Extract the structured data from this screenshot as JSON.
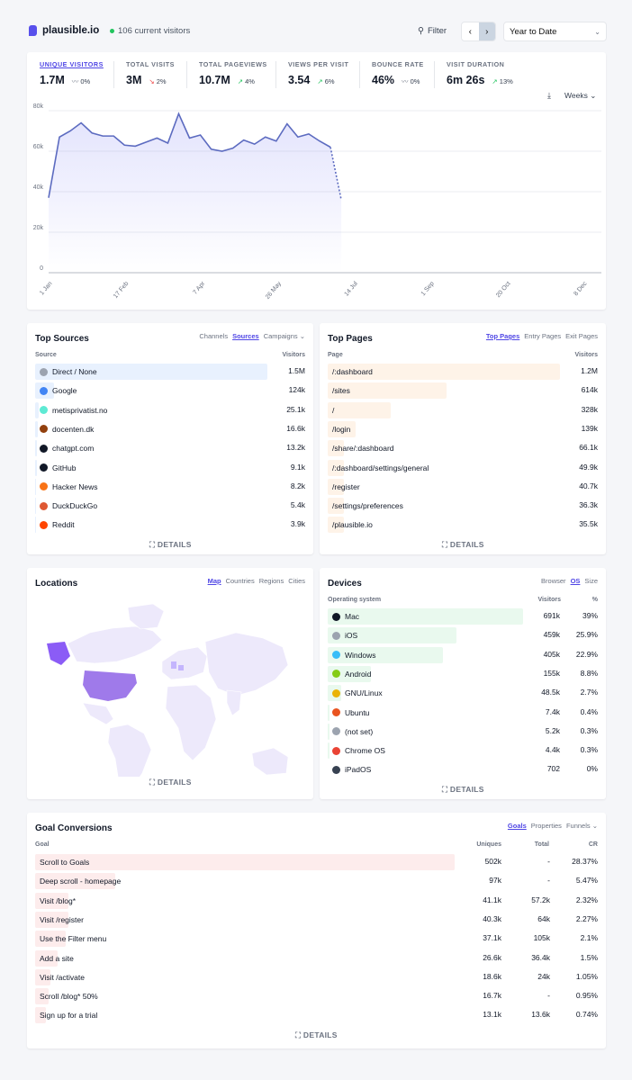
{
  "header": {
    "site": "plausible.io",
    "current_visitors": "106 current visitors",
    "filter_label": "Filter",
    "period": "Year to Date"
  },
  "stats": [
    {
      "label": "UNIQUE VISITORS",
      "value": "1.7M",
      "change": "0%",
      "trend": "flat",
      "selected": true
    },
    {
      "label": "TOTAL VISITS",
      "value": "3M",
      "change": "2%",
      "trend": "down"
    },
    {
      "label": "TOTAL PAGEVIEWS",
      "value": "10.7M",
      "change": "4%",
      "trend": "up"
    },
    {
      "label": "VIEWS PER VISIT",
      "value": "3.54",
      "change": "6%",
      "trend": "up"
    },
    {
      "label": "BOUNCE RATE",
      "value": "46%",
      "change": "0%",
      "trend": "flat"
    },
    {
      "label": "VISIT DURATION",
      "value": "6m 26s",
      "change": "13%",
      "trend": "up"
    }
  ],
  "interval": "Weeks",
  "chart_data": {
    "type": "line",
    "y_ticks": [
      "0",
      "20k",
      "40k",
      "60k",
      "80k"
    ],
    "ylim": [
      0,
      80000
    ],
    "x_ticks": [
      "1 Jan",
      "17 Feb",
      "7 Apr",
      "26 May",
      "14 Jul",
      "1 Sep",
      "20 Oct",
      "8 Dec"
    ],
    "series": [
      {
        "values": [
          37000,
          67000,
          70000,
          74000,
          69000,
          67500,
          67500,
          63000,
          62500,
          64500,
          66500,
          64000,
          78500,
          66500,
          68000,
          61000,
          60000,
          61500,
          65500,
          63500,
          67000,
          65000,
          73500,
          67000,
          68500,
          65000,
          62000
        ],
        "partial_last": 36000
      }
    ]
  },
  "sources": {
    "title": "Top Sources",
    "tabs": [
      "Channels",
      "Sources",
      "Campaigns"
    ],
    "col1": "Source",
    "col2": "Visitors",
    "rows": [
      {
        "name": "Direct / None",
        "value": "1.5M",
        "frac": 1.0,
        "icon": "link-icon",
        "color": "#9ca3af"
      },
      {
        "name": "Google",
        "value": "124k",
        "frac": 0.083,
        "icon": "google-icon",
        "color": "#4285f4"
      },
      {
        "name": "metisprivatist.no",
        "value": "25.1k",
        "frac": 0.017,
        "icon": "globe-icon",
        "color": "#5eead4"
      },
      {
        "name": "docenten.dk",
        "value": "16.6k",
        "frac": 0.011,
        "icon": "building-icon",
        "color": "#92400e"
      },
      {
        "name": "chatgpt.com",
        "value": "13.2k",
        "frac": 0.009,
        "icon": "chatgpt-icon",
        "color": "#111827"
      },
      {
        "name": "GitHub",
        "value": "9.1k",
        "frac": 0.006,
        "icon": "github-icon",
        "color": "#111827"
      },
      {
        "name": "Hacker News",
        "value": "8.2k",
        "frac": 0.005,
        "icon": "hackernews-icon",
        "color": "#f97316"
      },
      {
        "name": "DuckDuckGo",
        "value": "5.4k",
        "frac": 0.004,
        "icon": "duckduckgo-icon",
        "color": "#de5833"
      },
      {
        "name": "Reddit",
        "value": "3.9k",
        "frac": 0.003,
        "icon": "reddit-icon",
        "color": "#ff4500"
      }
    ],
    "details": "DETAILS"
  },
  "pages": {
    "title": "Top Pages",
    "tabs": [
      "Top Pages",
      "Entry Pages",
      "Exit Pages"
    ],
    "col1": "Page",
    "col2": "Visitors",
    "rows": [
      {
        "name": "/:dashboard",
        "value": "1.2M",
        "frac": 1.0
      },
      {
        "name": "/sites",
        "value": "614k",
        "frac": 0.51
      },
      {
        "name": "/",
        "value": "328k",
        "frac": 0.27
      },
      {
        "name": "/login",
        "value": "139k",
        "frac": 0.12
      },
      {
        "name": "/share/:dashboard",
        "value": "66.1k",
        "frac": 0.055
      },
      {
        "name": "/:dashboard/settings/general",
        "value": "49.9k",
        "frac": 0.042
      },
      {
        "name": "/register",
        "value": "40.7k",
        "frac": 0.034
      },
      {
        "name": "/settings/preferences",
        "value": "36.3k",
        "frac": 0.03
      },
      {
        "name": "/plausible.io",
        "value": "35.5k",
        "frac": 0.03
      }
    ],
    "details": "DETAILS"
  },
  "locations": {
    "title": "Locations",
    "tabs": [
      "Map",
      "Countries",
      "Regions",
      "Cities"
    ],
    "details": "DETAILS"
  },
  "devices": {
    "title": "Devices",
    "tabs": [
      "Browser",
      "OS",
      "Size"
    ],
    "col1": "Operating system",
    "col2": "Visitors",
    "col3": "%",
    "rows": [
      {
        "name": "Mac",
        "value": "691k",
        "pct": "39%",
        "frac": 1.0,
        "icon": "apple-icon",
        "color": "#111827"
      },
      {
        "name": "iOS",
        "value": "459k",
        "pct": "25.9%",
        "frac": 0.66,
        "icon": "ios-icon",
        "color": "#9ca3af"
      },
      {
        "name": "Windows",
        "value": "405k",
        "pct": "22.9%",
        "frac": 0.59,
        "icon": "windows-icon",
        "color": "#38bdf8"
      },
      {
        "name": "Android",
        "value": "155k",
        "pct": "8.8%",
        "frac": 0.22,
        "icon": "android-icon",
        "color": "#84cc16"
      },
      {
        "name": "GNU/Linux",
        "value": "48.5k",
        "pct": "2.7%",
        "frac": 0.07,
        "icon": "linux-icon",
        "color": "#eab308"
      },
      {
        "name": "Ubuntu",
        "value": "7.4k",
        "pct": "0.4%",
        "frac": 0.01,
        "icon": "ubuntu-icon",
        "color": "#e95420"
      },
      {
        "name": "(not set)",
        "value": "5.2k",
        "pct": "0.3%",
        "frac": 0.01,
        "icon": "unknown-icon",
        "color": "#9ca3af"
      },
      {
        "name": "Chrome OS",
        "value": "4.4k",
        "pct": "0.3%",
        "frac": 0.01,
        "icon": "chromeos-icon",
        "color": "#ea4335"
      },
      {
        "name": "iPadOS",
        "value": "702",
        "pct": "0%",
        "frac": 0.0,
        "icon": "ipados-icon",
        "color": "#374151"
      }
    ],
    "details": "DETAILS"
  },
  "goals": {
    "title": "Goal Conversions",
    "tabs": [
      "Goals",
      "Properties",
      "Funnels"
    ],
    "col1": "Goal",
    "col2": "Uniques",
    "col3": "Total",
    "col4": "CR",
    "rows": [
      {
        "name": "Scroll to Goals",
        "uniques": "502k",
        "total": "-",
        "cr": "28.37%",
        "frac": 1.0
      },
      {
        "name": "Deep scroll - homepage",
        "uniques": "97k",
        "total": "-",
        "cr": "5.47%",
        "frac": 0.19
      },
      {
        "name": "Visit /blog*",
        "uniques": "41.1k",
        "total": "57.2k",
        "cr": "2.32%",
        "frac": 0.08
      },
      {
        "name": "Visit /register",
        "uniques": "40.3k",
        "total": "64k",
        "cr": "2.27%",
        "frac": 0.08
      },
      {
        "name": "Use the Filter menu",
        "uniques": "37.1k",
        "total": "105k",
        "cr": "2.1%",
        "frac": 0.074
      },
      {
        "name": "Add a site",
        "uniques": "26.6k",
        "total": "36.4k",
        "cr": "1.5%",
        "frac": 0.053
      },
      {
        "name": "Visit /activate",
        "uniques": "18.6k",
        "total": "24k",
        "cr": "1.05%",
        "frac": 0.037
      },
      {
        "name": "Scroll /blog* 50%",
        "uniques": "16.7k",
        "total": "-",
        "cr": "0.95%",
        "frac": 0.033
      },
      {
        "name": "Sign up for a trial",
        "uniques": "13.1k",
        "total": "13.6k",
        "cr": "0.74%",
        "frac": 0.026
      }
    ],
    "details": "DETAILS"
  },
  "colors": {
    "accent": "#4f46e5",
    "line": "#5c6bc0",
    "sources_bar": "#e8f1fe",
    "pages_bar": "#fef3e8",
    "devices_bar": "#e9f9ee",
    "goals_bar": "#fdecec"
  }
}
